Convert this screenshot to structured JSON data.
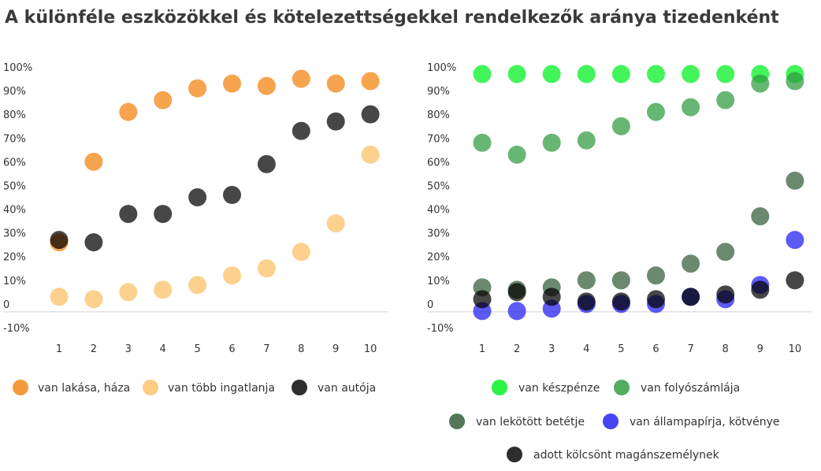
{
  "title": "A különféle eszközökkel és kötelezettségekkel rendelkezők aránya tizedenként",
  "chart_data": [
    {
      "type": "scatter",
      "categories": [
        "1",
        "2",
        "3",
        "4",
        "5",
        "6",
        "7",
        "8",
        "9",
        "10"
      ],
      "ylim": [
        -10,
        100
      ],
      "yticks": [
        "100%",
        "90%",
        "80%",
        "70%",
        "60%",
        "50%",
        "40%",
        "30%",
        "20%",
        "10%",
        "0",
        "-10%"
      ],
      "grid": false,
      "legend_position": "bottom",
      "series": [
        {
          "name": "van lakása, háza",
          "color": "#f59a3b",
          "opacity": 0.9,
          "values": [
            26,
            60,
            81,
            86,
            91,
            93,
            92,
            95,
            93,
            94
          ]
        },
        {
          "name": "van több ingatlanja",
          "color": "#fbc97a",
          "opacity": 0.85,
          "values": [
            3,
            2,
            5,
            6,
            8,
            12,
            15,
            22,
            34,
            63
          ]
        },
        {
          "name": "van autója",
          "color": "#000000",
          "opacity": 0.72,
          "values": [
            27,
            26,
            38,
            38,
            45,
            46,
            59,
            73,
            77,
            80
          ]
        }
      ]
    },
    {
      "type": "scatter",
      "categories": [
        "1",
        "2",
        "3",
        "4",
        "5",
        "6",
        "7",
        "8",
        "9",
        "10"
      ],
      "ylim": [
        -10,
        100
      ],
      "yticks": [
        "100%",
        "90%",
        "80%",
        "70%",
        "60%",
        "50%",
        "40%",
        "30%",
        "20%",
        "10%",
        "0",
        "-10%"
      ],
      "grid": false,
      "legend_position": "bottom",
      "series": [
        {
          "name": "van készpénze",
          "color": "#22f23e",
          "opacity": 0.85,
          "values": [
            97,
            97,
            97,
            97,
            97,
            97,
            97,
            97,
            97,
            97
          ]
        },
        {
          "name": "van folyószámlája",
          "color": "#2e9a3e",
          "opacity": 0.72,
          "values": [
            68,
            63,
            68,
            69,
            75,
            81,
            83,
            86,
            93,
            94
          ]
        },
        {
          "name": "van lekötött betétje",
          "color": "#1c4a20",
          "opacity": 0.65,
          "values": [
            7,
            6,
            7,
            10,
            10,
            12,
            17,
            22,
            37,
            52
          ]
        },
        {
          "name": "van állampapírja, kötvénye",
          "color": "#1a14f0",
          "opacity": 0.7,
          "values": [
            -3,
            -3,
            -2,
            0,
            0,
            0,
            3,
            2,
            8,
            27
          ]
        },
        {
          "name": "adott kölcsönt magánszemélynek",
          "color": "#000000",
          "opacity": 0.72,
          "values": [
            2,
            5,
            3,
            1,
            1,
            2,
            3,
            4,
            6,
            10
          ]
        }
      ]
    }
  ]
}
